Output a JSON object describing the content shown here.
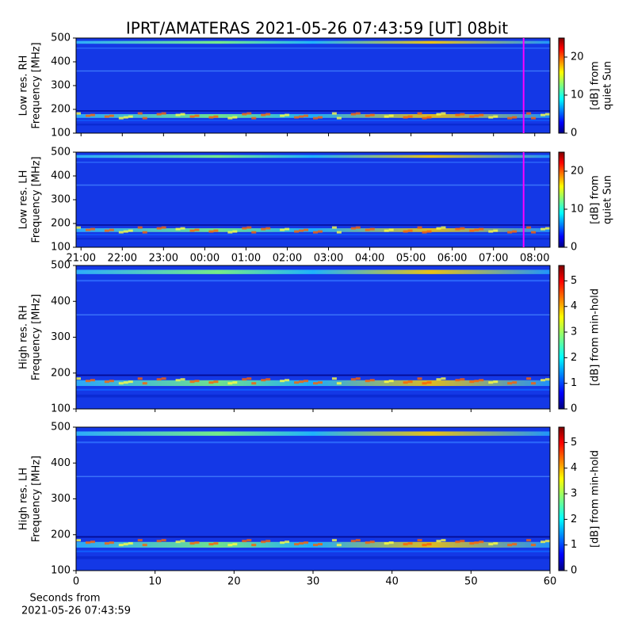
{
  "title": "IPRT/AMATERAS 2021-05-26 07:43:59 [UT]   08bit",
  "chart_data": [
    {
      "type": "heatmap",
      "ylabel": [
        "Low res. RH",
        "Frequency [MHz]"
      ],
      "ylim": [
        100,
        500
      ],
      "yticks": [
        100,
        200,
        300,
        400,
        500
      ],
      "xlim": [
        -0.12,
        11.37
      ],
      "xticks": [
        0,
        1,
        2,
        3,
        4,
        5,
        6,
        7,
        8,
        9,
        10,
        11
      ],
      "show_xtick_labels": false,
      "marker": {
        "x": 10.73,
        "color": "#ff00ff"
      },
      "colorbar": {
        "label": [
          "[dB] from",
          "quiet Sun"
        ],
        "lim": [
          0,
          25
        ],
        "ticks": [
          0,
          10,
          20
        ]
      }
    },
    {
      "type": "heatmap",
      "ylabel": [
        "Low res. LH",
        "Frequency [MHz]"
      ],
      "ylim": [
        100,
        500
      ],
      "yticks": [
        100,
        200,
        300,
        400,
        500
      ],
      "xlim": [
        -0.12,
        11.37
      ],
      "xticks": [
        {
          "value": 0,
          "label": "21:00"
        },
        {
          "value": 1,
          "label": "22:00"
        },
        {
          "value": 2,
          "label": "23:00"
        },
        {
          "value": 3,
          "label": "00:00"
        },
        {
          "value": 4,
          "label": "01:00"
        },
        {
          "value": 5,
          "label": "02:00"
        },
        {
          "value": 6,
          "label": "03:00"
        },
        {
          "value": 7,
          "label": "04:00"
        },
        {
          "value": 8,
          "label": "05:00"
        },
        {
          "value": 9,
          "label": "06:00"
        },
        {
          "value": 10,
          "label": "07:00"
        },
        {
          "value": 11,
          "label": "08:00"
        }
      ],
      "show_xtick_labels": true,
      "marker": {
        "x": 10.73,
        "color": "#ff00ff"
      },
      "colorbar": {
        "label": [
          "[dB] from",
          "quiet Sun"
        ],
        "lim": [
          0,
          25
        ],
        "ticks": [
          0,
          10,
          20
        ]
      }
    },
    {
      "type": "heatmap",
      "ylabel": [
        "High res. RH",
        "Frequency [MHz]"
      ],
      "ylim": [
        100,
        500
      ],
      "yticks": [
        100,
        200,
        300,
        400,
        500
      ],
      "xlim": [
        0,
        60
      ],
      "xticks": [
        0,
        10,
        20,
        30,
        40,
        50,
        60
      ],
      "show_xtick_labels": false,
      "colorbar": {
        "label": [
          "[dB] from min-hold"
        ],
        "lim": [
          0,
          5.6
        ],
        "ticks": [
          0,
          1,
          2,
          3,
          4,
          5
        ]
      }
    },
    {
      "type": "heatmap",
      "ylabel": [
        "High res. LH",
        "Frequency [MHz]"
      ],
      "ylim": [
        100,
        500
      ],
      "yticks": [
        100,
        200,
        300,
        400,
        500
      ],
      "xlim": [
        0,
        60
      ],
      "xticks": [
        0,
        10,
        20,
        30,
        40,
        50,
        60
      ],
      "show_xtick_labels": true,
      "xlabel": [
        "Seconds from",
        "2021-05-26 07:43:59"
      ],
      "colorbar": {
        "label": [
          "[dB] from min-hold"
        ],
        "lim": [
          0,
          5.6
        ],
        "ticks": [
          0,
          1,
          2,
          3,
          4,
          5
        ]
      }
    }
  ]
}
